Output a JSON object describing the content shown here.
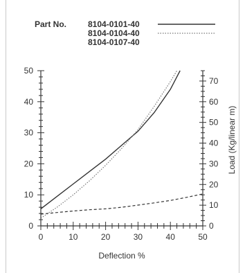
{
  "chart_data": {
    "type": "line",
    "legend_title": "Part No.",
    "legend_placement": "top",
    "series": [
      {
        "name": "8104-0101-40",
        "style": "solid",
        "color": "#333333",
        "points": [
          [
            0,
            5.5
          ],
          [
            5,
            9.5
          ],
          [
            10,
            13.5
          ],
          [
            15,
            17.5
          ],
          [
            20,
            21.5
          ],
          [
            25,
            26.0
          ],
          [
            30,
            30.5
          ],
          [
            35,
            36.5
          ],
          [
            40,
            44.0
          ],
          [
            43,
            50.0
          ]
        ]
      },
      {
        "name": "8104-0104-40",
        "style": "dotted",
        "color": "#777777",
        "points": [
          [
            0,
            2.5
          ],
          [
            5,
            6.0
          ],
          [
            10,
            10.0
          ],
          [
            15,
            14.5
          ],
          [
            20,
            19.5
          ],
          [
            25,
            25.0
          ],
          [
            30,
            31.0
          ],
          [
            35,
            38.5
          ],
          [
            40,
            46.5
          ],
          [
            42,
            50.0
          ]
        ]
      },
      {
        "name": "8104-0107-40",
        "style": "dashed",
        "color": "#333333",
        "points": [
          [
            0,
            3.8
          ],
          [
            5,
            4.3
          ],
          [
            10,
            4.8
          ],
          [
            15,
            5.2
          ],
          [
            20,
            5.5
          ],
          [
            25,
            6.0
          ],
          [
            30,
            6.7
          ],
          [
            35,
            7.4
          ],
          [
            40,
            8.2
          ],
          [
            45,
            9.2
          ],
          [
            50,
            10.3
          ]
        ]
      }
    ],
    "x_axis": {
      "label": "Deflection %",
      "min": 0,
      "max": 50,
      "ticks": [
        0,
        10,
        20,
        30,
        40,
        50
      ]
    },
    "y_left": {
      "label": "",
      "min": 0,
      "max": 50,
      "ticks": [
        0,
        10,
        20,
        30,
        40,
        50
      ]
    },
    "y_right": {
      "label": "Load (Kg/linear m)",
      "min": 0,
      "max": 75,
      "ticks": [
        0,
        10,
        20,
        30,
        40,
        50,
        60,
        70
      ]
    },
    "grid": false
  }
}
